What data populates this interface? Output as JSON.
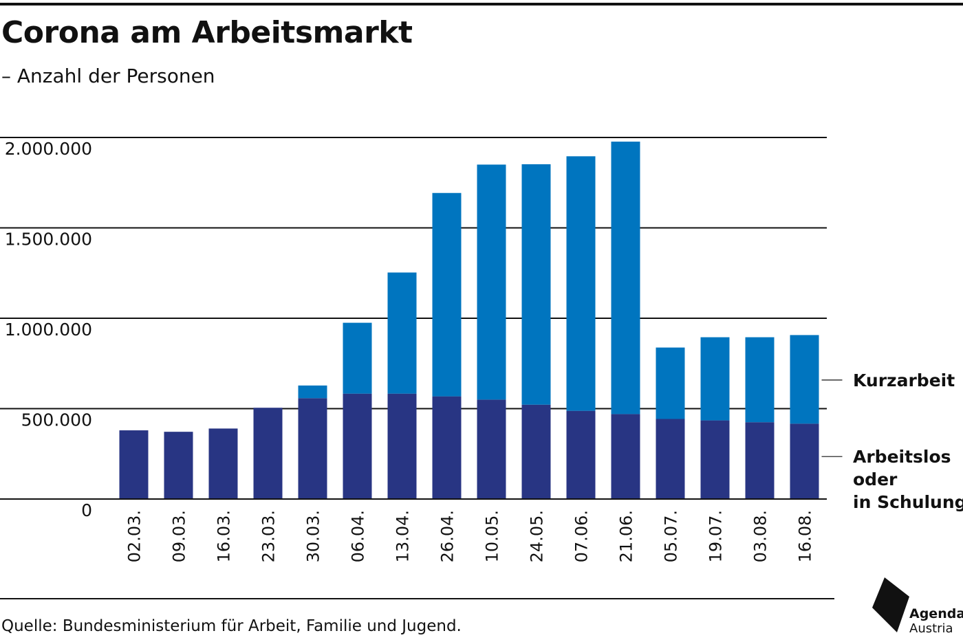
{
  "header": {
    "title": "Corona am Arbeitsmarkt",
    "subtitle": "– Anzahl der Personen"
  },
  "footer": {
    "source": "Quelle: Bundesministerium für Arbeit, Familie und Jugend.",
    "logo_line1": "Agenda",
    "logo_line2": "Austria"
  },
  "chart_data": {
    "type": "bar",
    "stacked": true,
    "title": "Corona am Arbeitsmarkt",
    "subtitle": "– Anzahl der Personen",
    "categories": [
      "02.03.",
      "09.03.",
      "16.03.",
      "23.03.",
      "30.03.",
      "06.04.",
      "13.04.",
      "26.04.",
      "10.05.",
      "24.05.",
      "07.06.",
      "21.06.",
      "05.07.",
      "19.07.",
      "03.08.",
      "16.08."
    ],
    "series": [
      {
        "name": "Arbeitslos oder in Schulung",
        "color": "#283583",
        "values": [
          380000,
          372000,
          390000,
          505000,
          558000,
          583000,
          583000,
          568000,
          550000,
          522000,
          488000,
          470000,
          443000,
          435000,
          425000,
          417000
        ]
      },
      {
        "name": "Kurzarbeit",
        "color": "#0075bf",
        "values": [
          0,
          0,
          0,
          0,
          70000,
          392000,
          670000,
          1125000,
          1300000,
          1330000,
          1408000,
          1507000,
          395000,
          460000,
          470000,
          490000
        ]
      }
    ],
    "legend": [
      {
        "lines": [
          "Kurzarbeit"
        ]
      },
      {
        "lines": [
          "Arbeitslos",
          "oder",
          "in Schulung"
        ]
      }
    ],
    "yticks": [
      0,
      500000,
      1000000,
      1500000,
      2000000
    ],
    "ytick_labels": [
      "0",
      "500.000",
      "1.000.000",
      "1.500.000",
      "2.000.000"
    ],
    "ylim": [
      0,
      2000000
    ],
    "legend_position": "right",
    "grid": true
  }
}
